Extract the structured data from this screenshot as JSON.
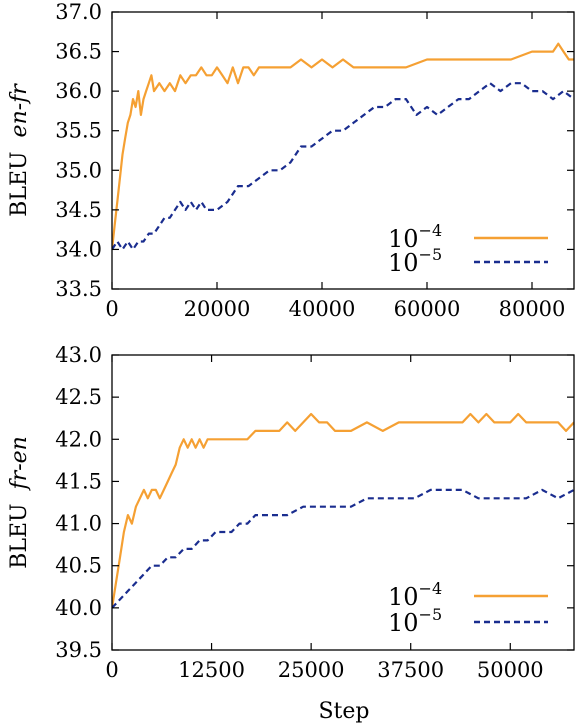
{
  "chart_data": [
    {
      "type": "line",
      "title": "",
      "xlabel": "",
      "ylabel": "BLEU",
      "ylabel_suffix": "en-fr",
      "xlim": [
        0,
        88000
      ],
      "ylim": [
        33.5,
        37.0
      ],
      "xticks": [
        0,
        20000,
        40000,
        60000,
        80000
      ],
      "xtick_labels": [
        "0",
        "20000",
        "40000",
        "60000",
        "80000"
      ],
      "yticks": [
        33.5,
        34.0,
        34.5,
        35.0,
        35.5,
        36.0,
        36.5,
        37.0
      ],
      "ytick_labels": [
        "33.5",
        "34.0",
        "34.5",
        "35.0",
        "35.5",
        "36.0",
        "36.5",
        "37.0"
      ],
      "grid": false,
      "legend": "bottom-right",
      "series": [
        {
          "name": "10^-4",
          "name_base": "10",
          "name_exp": "−4",
          "color": "#f5a033",
          "style": "solid",
          "x": [
            0,
            500,
            1000,
            1500,
            2000,
            2500,
            3000,
            3500,
            4000,
            4500,
            5000,
            5500,
            6000,
            6500,
            7000,
            7500,
            8000,
            9000,
            10000,
            11000,
            12000,
            13000,
            14000,
            15000,
            16000,
            17000,
            18000,
            19000,
            20000,
            21000,
            22000,
            23000,
            24000,
            25000,
            26000,
            27000,
            28000,
            30000,
            32000,
            34000,
            36000,
            38000,
            40000,
            42000,
            44000,
            46000,
            48000,
            52000,
            56000,
            60000,
            64000,
            68000,
            72000,
            76000,
            80000,
            82000,
            84000,
            85000,
            86000,
            87000,
            88000
          ],
          "y": [
            34.0,
            34.3,
            34.6,
            34.9,
            35.2,
            35.4,
            35.6,
            35.7,
            35.9,
            35.8,
            36.0,
            35.7,
            35.9,
            36.0,
            36.1,
            36.2,
            36.0,
            36.1,
            36.0,
            36.1,
            36.0,
            36.2,
            36.1,
            36.2,
            36.2,
            36.3,
            36.2,
            36.2,
            36.3,
            36.2,
            36.1,
            36.3,
            36.1,
            36.3,
            36.3,
            36.2,
            36.3,
            36.3,
            36.3,
            36.3,
            36.4,
            36.3,
            36.4,
            36.3,
            36.4,
            36.3,
            36.3,
            36.3,
            36.3,
            36.4,
            36.4,
            36.4,
            36.4,
            36.4,
            36.5,
            36.5,
            36.5,
            36.6,
            36.5,
            36.4,
            36.4
          ]
        },
        {
          "name": "10^-5",
          "name_base": "10",
          "name_exp": "−5",
          "color": "#1a2d8f",
          "style": "dashed",
          "x": [
            0,
            1000,
            2000,
            3000,
            4000,
            5000,
            6000,
            7000,
            8000,
            9000,
            10000,
            11000,
            12000,
            13000,
            14000,
            15000,
            16000,
            17000,
            18000,
            20000,
            22000,
            24000,
            26000,
            28000,
            30000,
            32000,
            34000,
            36000,
            38000,
            40000,
            42000,
            44000,
            46000,
            48000,
            50000,
            52000,
            54000,
            56000,
            58000,
            60000,
            62000,
            64000,
            66000,
            68000,
            70000,
            72000,
            74000,
            76000,
            78000,
            80000,
            82000,
            84000,
            86000,
            88000
          ],
          "y": [
            34.0,
            34.1,
            34.0,
            34.1,
            34.0,
            34.1,
            34.1,
            34.2,
            34.2,
            34.3,
            34.4,
            34.4,
            34.5,
            34.6,
            34.5,
            34.6,
            34.5,
            34.6,
            34.5,
            34.5,
            34.6,
            34.8,
            34.8,
            34.9,
            35.0,
            35.0,
            35.1,
            35.3,
            35.3,
            35.4,
            35.5,
            35.5,
            35.6,
            35.7,
            35.8,
            35.8,
            35.9,
            35.9,
            35.7,
            35.8,
            35.7,
            35.8,
            35.9,
            35.9,
            36.0,
            36.1,
            36.0,
            36.1,
            36.1,
            36.0,
            36.0,
            35.9,
            36.0,
            35.9
          ]
        }
      ]
    },
    {
      "type": "line",
      "title": "",
      "xlabel": "Step",
      "ylabel": "BLEU",
      "ylabel_suffix": "fr-en",
      "xlim": [
        0,
        58000
      ],
      "ylim": [
        39.5,
        43.0
      ],
      "xticks": [
        0,
        12500,
        25000,
        37500,
        50000
      ],
      "xtick_labels": [
        "0",
        "12500",
        "25000",
        "37500",
        "50000"
      ],
      "yticks": [
        39.5,
        40.0,
        40.5,
        41.0,
        41.5,
        42.0,
        42.5,
        43.0
      ],
      "ytick_labels": [
        "39.5",
        "40.0",
        "40.5",
        "41.0",
        "41.5",
        "42.0",
        "42.5",
        "43.0"
      ],
      "grid": false,
      "legend": "bottom-right",
      "series": [
        {
          "name": "10^-4",
          "name_base": "10",
          "name_exp": "−4",
          "color": "#f5a033",
          "style": "solid",
          "x": [
            0,
            500,
            1000,
            1500,
            2000,
            2500,
            3000,
            3500,
            4000,
            4500,
            5000,
            5500,
            6000,
            6500,
            7000,
            7500,
            8000,
            8500,
            9000,
            9500,
            10000,
            10500,
            11000,
            11500,
            12000,
            13000,
            14000,
            15000,
            16000,
            17000,
            18000,
            19000,
            20000,
            21000,
            22000,
            23000,
            24000,
            25000,
            26000,
            27000,
            28000,
            30000,
            32000,
            34000,
            36000,
            38000,
            40000,
            42000,
            44000,
            45000,
            46000,
            47000,
            48000,
            50000,
            51000,
            52000,
            54000,
            56000,
            57000,
            58000
          ],
          "y": [
            40.0,
            40.3,
            40.6,
            40.9,
            41.1,
            41.0,
            41.2,
            41.3,
            41.4,
            41.3,
            41.4,
            41.4,
            41.3,
            41.4,
            41.5,
            41.6,
            41.7,
            41.9,
            42.0,
            41.9,
            42.0,
            41.9,
            42.0,
            41.9,
            42.0,
            42.0,
            42.0,
            42.0,
            42.0,
            42.0,
            42.1,
            42.1,
            42.1,
            42.1,
            42.2,
            42.1,
            42.2,
            42.3,
            42.2,
            42.2,
            42.1,
            42.1,
            42.2,
            42.1,
            42.2,
            42.2,
            42.2,
            42.2,
            42.2,
            42.3,
            42.2,
            42.3,
            42.2,
            42.2,
            42.3,
            42.2,
            42.2,
            42.2,
            42.1,
            42.2
          ]
        },
        {
          "name": "10^-5",
          "name_base": "10",
          "name_exp": "−5",
          "color": "#1a2d8f",
          "style": "dashed",
          "x": [
            0,
            1000,
            2000,
            3000,
            4000,
            5000,
            6000,
            7000,
            8000,
            9000,
            10000,
            11000,
            12000,
            13000,
            14000,
            15000,
            16000,
            17000,
            18000,
            20000,
            22000,
            24000,
            26000,
            28000,
            30000,
            32000,
            34000,
            36000,
            38000,
            40000,
            42000,
            44000,
            46000,
            48000,
            50000,
            52000,
            54000,
            56000,
            58000
          ],
          "y": [
            40.0,
            40.1,
            40.2,
            40.3,
            40.4,
            40.5,
            40.5,
            40.6,
            40.6,
            40.7,
            40.7,
            40.8,
            40.8,
            40.9,
            40.9,
            40.9,
            41.0,
            41.0,
            41.1,
            41.1,
            41.1,
            41.2,
            41.2,
            41.2,
            41.2,
            41.3,
            41.3,
            41.3,
            41.3,
            41.4,
            41.4,
            41.4,
            41.3,
            41.3,
            41.3,
            41.3,
            41.4,
            41.3,
            41.4
          ]
        }
      ]
    }
  ]
}
